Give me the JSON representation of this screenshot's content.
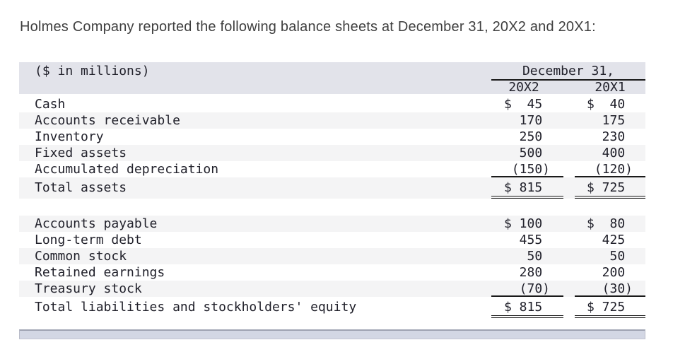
{
  "title": "Holmes Company reported the following balance sheets at December 31, 20X2 and 20X1:",
  "colors": {
    "header_bg": "#e2e3ea",
    "stripe_bg": "#f4f4f5",
    "rule": "#1a1a1a",
    "table_text": "#21212b",
    "title_text": "#3f3f3f",
    "footer_bar_bg": "#d3d7e4",
    "footer_bar_border": "#9fa3b2"
  },
  "table": {
    "corner_label": "($ in millions)",
    "date_header": "December 31,",
    "col_headers": [
      "20X2",
      "20X1"
    ],
    "sections": [
      {
        "name": "assets",
        "shade_first_row": false,
        "rows": [
          {
            "label": "Cash",
            "v1": "$  45 ",
            "v2": "$  40 ",
            "rule": "none"
          },
          {
            "label": "Accounts receivable",
            "v1": "  170 ",
            "v2": "  175 ",
            "rule": "none"
          },
          {
            "label": "Inventory",
            "v1": "  250 ",
            "v2": "  230 ",
            "rule": "none"
          },
          {
            "label": "Fixed assets",
            "v1": "  500 ",
            "v2": "  400 ",
            "rule": "none"
          },
          {
            "label": "Accumulated depreciation",
            "v1": " (150)",
            "v2": " (120)",
            "rule": "single"
          },
          {
            "label": "Total assets",
            "v1": "$ 815 ",
            "v2": "$ 725 ",
            "rule": "double",
            "total": true
          }
        ]
      },
      {
        "name": "liabilities-and-equity",
        "shade_first_row": true,
        "rows": [
          {
            "label": "Accounts payable",
            "v1": "$ 100 ",
            "v2": "$  80 ",
            "rule": "none"
          },
          {
            "label": "Long-term debt",
            "v1": "  455 ",
            "v2": "  425 ",
            "rule": "none"
          },
          {
            "label": "Common stock",
            "v1": "   50 ",
            "v2": "   50 ",
            "rule": "none"
          },
          {
            "label": "Retained earnings",
            "v1": "  280 ",
            "v2": "  200 ",
            "rule": "none"
          },
          {
            "label": "Treasury stock",
            "v1": "  (70)",
            "v2": "  (30)",
            "rule": "single"
          },
          {
            "label": "Total liabilities and stockholders' equity",
            "v1": "$ 815 ",
            "v2": "$ 725 ",
            "rule": "double",
            "total": true
          }
        ]
      }
    ]
  }
}
